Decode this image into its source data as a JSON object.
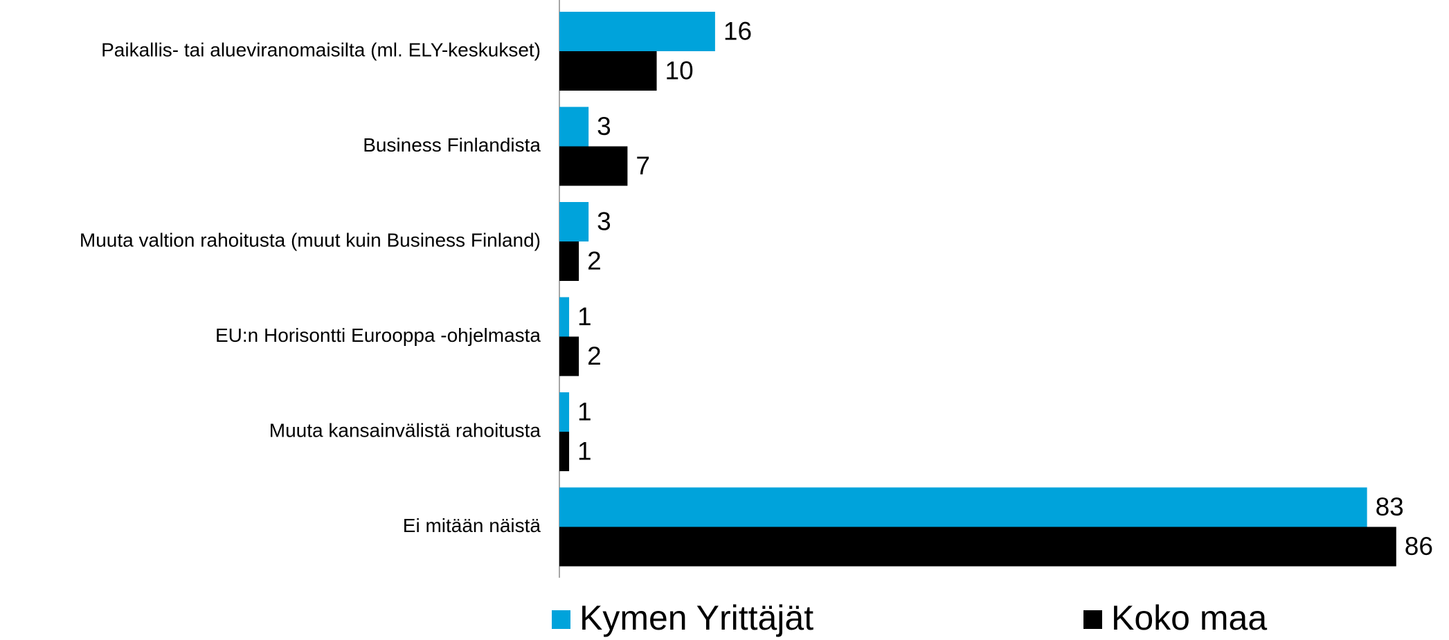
{
  "chart_data": {
    "type": "hbar",
    "categories": [
      "Paikallis- tai alueviranomaisilta (ml. ELY-keskukset)",
      "Business Finlandista",
      "Muuta valtion rahoitusta (muut kuin Business Finland)",
      "EU:n Horisontti Eurooppa -ohjelmasta",
      "Muuta kansainvälistä rahoitusta",
      "Ei mitään näistä"
    ],
    "series": [
      {
        "name": "Kymen Yrittäjät",
        "color": "#00a3db",
        "values": [
          16,
          3,
          3,
          1,
          1,
          83
        ]
      },
      {
        "name": "Koko maa",
        "color": "#000000",
        "values": [
          10,
          7,
          2,
          2,
          1,
          86
        ]
      }
    ],
    "xlim": [
      0,
      90
    ],
    "legend": "bottom"
  }
}
